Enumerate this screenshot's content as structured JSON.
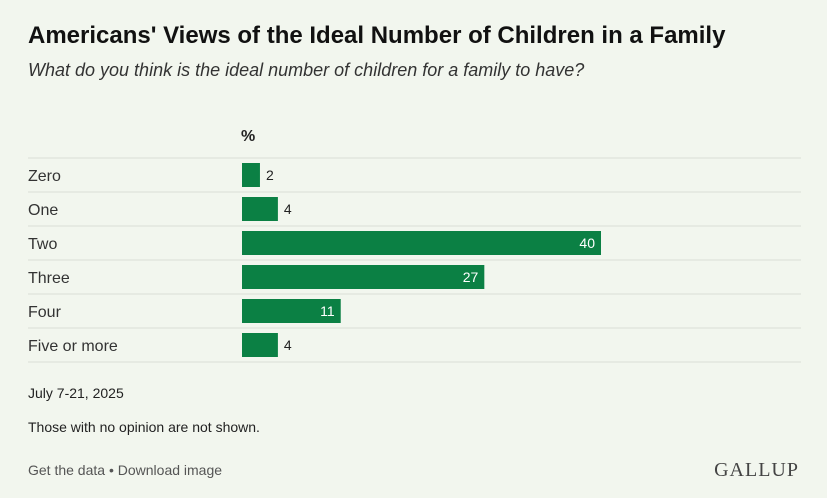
{
  "header": {
    "title": "Americans' Views of the Ideal Number of Children in a Family",
    "subtitle": "What do you think is the ideal number of children for a family to have?"
  },
  "chart_data": {
    "type": "bar",
    "orientation": "horizontal",
    "unit_label": "%",
    "categories": [
      "Zero",
      "One",
      "Two",
      "Three",
      "Four",
      "Five or more"
    ],
    "values": [
      2,
      4,
      40,
      27,
      11,
      4
    ],
    "xlim": [
      0,
      40
    ],
    "grid": false,
    "bar_color": "#0b8044"
  },
  "notes": {
    "date": "July 7-21, 2025",
    "caveat": "Those with no opinion are not shown."
  },
  "footer": {
    "get_data": "Get the data",
    "separator": "•",
    "download": "Download image",
    "brand": "GALLUP"
  },
  "colors": {
    "background": "#f2f6ee",
    "bar": "#0b8044",
    "divider": "#d9ddd5"
  }
}
